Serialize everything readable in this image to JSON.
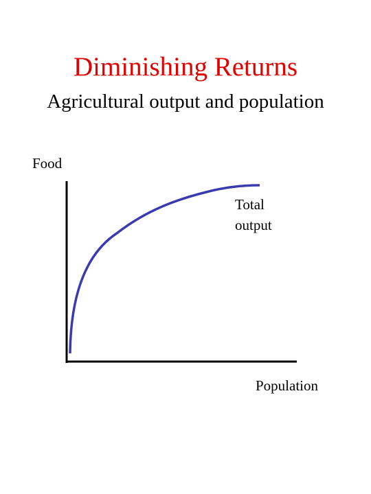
{
  "title": "Diminishing Returns",
  "subtitle": "Agricultural output and population",
  "y_axis_label": "Food",
  "x_axis_label": "Population",
  "curve_label": [
    "Total",
    "output"
  ]
}
